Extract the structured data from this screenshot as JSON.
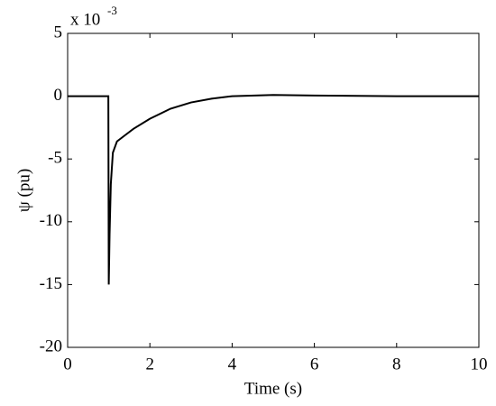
{
  "chart_data": {
    "type": "line",
    "xlabel": "Time (s)",
    "ylabel": "ψ (pu)",
    "y_multiplier": "x 10",
    "y_multiplier_exponent": "-3",
    "x": [
      0,
      0.99,
      1.0,
      1.02,
      1.05,
      1.1,
      1.2,
      1.4,
      1.6,
      2.0,
      2.5,
      3.0,
      3.5,
      4.0,
      5.0,
      6.0,
      8.0,
      10.0
    ],
    "values": [
      0,
      0,
      -15,
      -11,
      -7,
      -4.5,
      -3.6,
      -3.1,
      -2.6,
      -1.8,
      -1.0,
      -0.5,
      -0.2,
      0,
      0.1,
      0.05,
      0,
      0
    ],
    "color": "#000000",
    "xlim": [
      0,
      10
    ],
    "xticks": [
      0,
      2,
      4,
      6,
      8,
      10
    ],
    "ylim": [
      -20,
      5
    ],
    "yticks": [
      -20,
      -15,
      -10,
      -5,
      0,
      5
    ],
    "grid": false
  }
}
